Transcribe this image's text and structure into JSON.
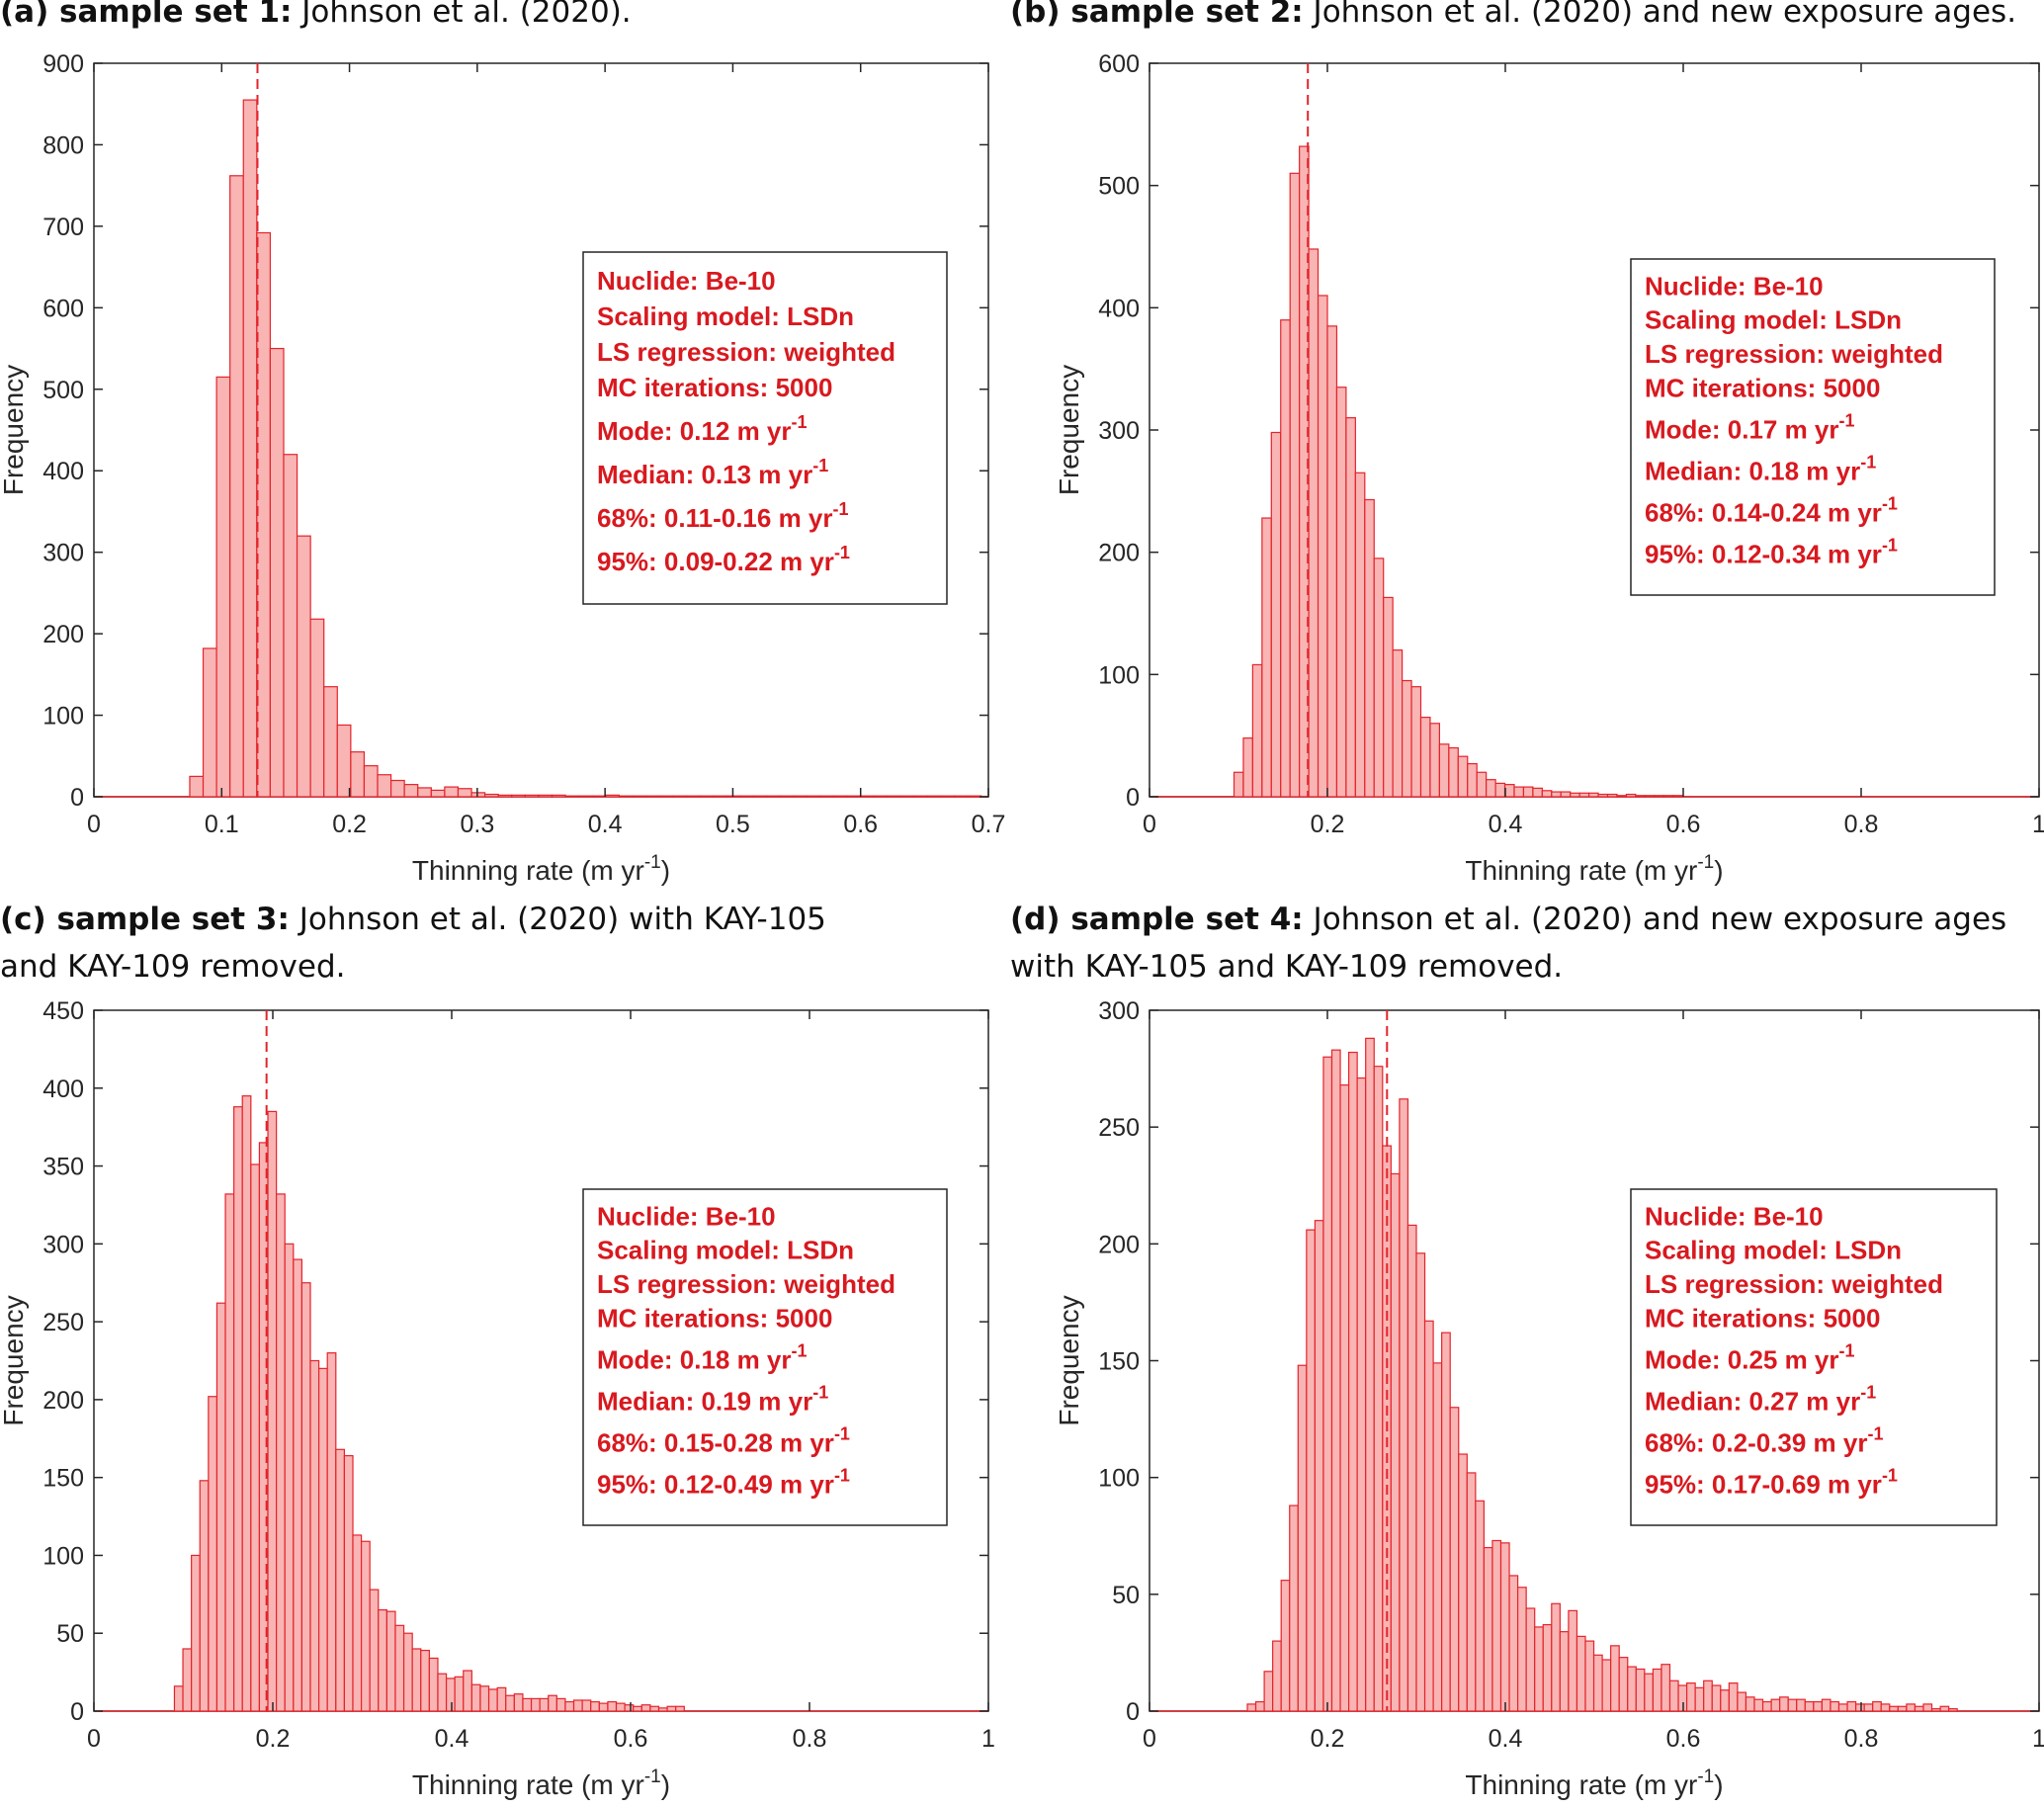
{
  "colors": {
    "bar_fill": "#f9b4b4",
    "bar_edge": "#e3242b",
    "legend_text": "#d8191f",
    "axis": "#262626"
  },
  "panels": [
    {
      "label": "(a) sample set 1:",
      "caption_line1": "Johnson et al. (2020).",
      "caption_line2": ""
    },
    {
      "label": "(b) sample set 2:",
      "caption_line1": "Johnson et al. (2020) and new exposure ages.",
      "caption_line2": ""
    },
    {
      "label": "(c) sample set 3:",
      "caption_line1": "Johnson et al. (2020) with KAY-105",
      "caption_line2": "and KAY-109 removed."
    },
    {
      "label": "(d) sample set 4:",
      "caption_line1": "Johnson et al. (2020) and new exposure ages",
      "caption_line2": "with KAY-105 and KAY-109 removed."
    }
  ],
  "chart_data": [
    {
      "type": "bar",
      "title": "",
      "xlabel": "Thinning rate (m yr",
      "xlabel_sup": "-1",
      "xlabel_end": ")",
      "ylabel": "Frequency",
      "xlim": [
        0,
        0.7
      ],
      "ylim": [
        0,
        900
      ],
      "xticks": [
        0,
        0.1,
        0.2,
        0.3,
        0.4,
        0.5,
        0.6,
        0.7
      ],
      "xtick_labels": [
        "0",
        "0.1",
        "0.2",
        "0.3",
        "0.4",
        "0.5",
        "0.6",
        "0.7"
      ],
      "yticks": [
        0,
        100,
        200,
        300,
        400,
        500,
        600,
        700,
        800,
        900
      ],
      "ytick_labels": [
        "0",
        "100",
        "200",
        "300",
        "400",
        "500",
        "600",
        "700",
        "800",
        "900"
      ],
      "bin_start": 0.075,
      "bin_width": 0.0105,
      "values": [
        25,
        182,
        515,
        762,
        855,
        692,
        550,
        420,
        320,
        218,
        135,
        88,
        55,
        38,
        27,
        20,
        15,
        11,
        8,
        12,
        10,
        5,
        3,
        2,
        2,
        2,
        2,
        2,
        1,
        1,
        1,
        2,
        1,
        1,
        1,
        1,
        1,
        1,
        1,
        1,
        1,
        1,
        1,
        1,
        1,
        1,
        1,
        1,
        1,
        1,
        1,
        1,
        1,
        1,
        1,
        1,
        1,
        1,
        1,
        1,
        1,
        1,
        1
      ],
      "reference_line": 0.128,
      "legend": [
        "Nuclide: Be-10",
        "Scaling model: LSDn",
        "LS regression: weighted",
        "MC iterations: 5000",
        "Mode: 0.12 m yr",
        "Median: 0.13 m yr",
        "68%: 0.11-0.16 m yr",
        "95%: 0.09-0.22 m yr"
      ],
      "legend_sup": [
        "",
        "",
        "",
        "",
        "-1",
        "-1",
        "-1",
        "-1"
      ],
      "legend_placement": "right-middle"
    },
    {
      "type": "bar",
      "title": "",
      "xlabel": "Thinning rate (m yr",
      "xlabel_sup": "-1",
      "xlabel_end": ")",
      "ylabel": "Frequency",
      "xlim": [
        0,
        1
      ],
      "ylim": [
        0,
        600
      ],
      "xticks": [
        0,
        0.2,
        0.4,
        0.6,
        0.8,
        1
      ],
      "xtick_labels": [
        "0",
        "0.2",
        "0.4",
        "0.6",
        "0.8",
        "1"
      ],
      "yticks": [
        0,
        100,
        200,
        300,
        400,
        500,
        600
      ],
      "ytick_labels": [
        "0",
        "100",
        "200",
        "300",
        "400",
        "500",
        "600"
      ],
      "bin_start": 0.095,
      "bin_width": 0.0105,
      "values": [
        20,
        48,
        108,
        228,
        298,
        390,
        510,
        532,
        448,
        410,
        385,
        335,
        310,
        265,
        243,
        195,
        163,
        120,
        95,
        90,
        65,
        60,
        43,
        40,
        33,
        27,
        20,
        14,
        11,
        10,
        8,
        8,
        7,
        5,
        4,
        4,
        3,
        3,
        3,
        2,
        2,
        1,
        2,
        1,
        1,
        1,
        1,
        1
      ],
      "reference_line": 0.178,
      "legend": [
        "Nuclide: Be-10",
        "Scaling model: LSDn",
        "LS regression: weighted",
        "MC iterations: 5000",
        "Mode: 0.17 m yr",
        "Median: 0.18 m yr",
        "68%: 0.14-0.24 m yr",
        "95%: 0.12-0.34 m yr"
      ],
      "legend_sup": [
        "",
        "",
        "",
        "",
        "-1",
        "-1",
        "-1",
        "-1"
      ],
      "legend_placement": "right-middle"
    },
    {
      "type": "bar",
      "title": "",
      "xlabel": "Thinning rate (m yr",
      "xlabel_sup": "-1",
      "xlabel_end": ")",
      "ylabel": "Frequency",
      "xlim": [
        0,
        1
      ],
      "ylim": [
        0,
        450
      ],
      "xticks": [
        0,
        0.2,
        0.4,
        0.6,
        0.8,
        1
      ],
      "xtick_labels": [
        "0",
        "0.2",
        "0.4",
        "0.6",
        "0.8",
        "1"
      ],
      "yticks": [
        0,
        50,
        100,
        150,
        200,
        250,
        300,
        350,
        400,
        450
      ],
      "ytick_labels": [
        "0",
        "50",
        "100",
        "150",
        "200",
        "250",
        "300",
        "350",
        "400",
        "450"
      ],
      "bin_start": 0.09,
      "bin_width": 0.0095,
      "values": [
        16,
        40,
        100,
        148,
        202,
        262,
        332,
        388,
        395,
        351,
        365,
        385,
        332,
        300,
        290,
        275,
        225,
        220,
        230,
        168,
        164,
        113,
        109,
        78,
        65,
        64,
        55,
        50,
        40,
        39,
        34,
        24,
        21,
        22,
        26,
        17,
        16,
        14,
        15,
        10,
        11,
        8,
        8,
        8,
        10,
        8,
        6,
        7,
        7,
        6,
        5,
        6,
        5,
        4,
        3,
        4,
        3,
        2,
        3,
        3
      ],
      "reference_line": 0.193,
      "legend": [
        "Nuclide: Be-10",
        "Scaling model: LSDn",
        "LS regression: weighted",
        "MC iterations: 5000",
        "Mode: 0.18 m yr",
        "Median: 0.19 m yr",
        "68%: 0.15-0.28 m yr",
        "95%: 0.12-0.49 m yr"
      ],
      "legend_sup": [
        "",
        "",
        "",
        "",
        "-1",
        "-1",
        "-1",
        "-1"
      ],
      "legend_placement": "right-middle"
    },
    {
      "type": "bar",
      "title": "",
      "xlabel": "Thinning rate (m yr",
      "xlabel_sup": "-1",
      "xlabel_end": ")",
      "ylabel": "Frequency",
      "xlim": [
        0,
        1
      ],
      "ylim": [
        0,
        300
      ],
      "xticks": [
        0,
        0.2,
        0.4,
        0.6,
        0.8,
        1
      ],
      "xtick_labels": [
        "0",
        "0.2",
        "0.4",
        "0.6",
        "0.8",
        "1"
      ],
      "yticks": [
        0,
        50,
        100,
        150,
        200,
        250,
        300
      ],
      "ytick_labels": [
        "0",
        "50",
        "100",
        "150",
        "200",
        "250",
        "300"
      ],
      "bin_start": 0.11,
      "bin_width": 0.0095,
      "values": [
        3,
        4,
        17,
        30,
        56,
        88,
        148,
        206,
        210,
        280,
        283,
        268,
        282,
        271,
        288,
        276,
        242,
        230,
        262,
        208,
        196,
        167,
        149,
        162,
        130,
        110,
        102,
        90,
        70,
        73,
        72,
        58,
        53,
        44,
        36,
        37,
        46,
        34,
        43,
        32,
        30,
        24,
        22,
        28,
        23,
        19,
        18,
        16,
        18,
        20,
        13,
        11,
        12,
        10,
        13,
        11,
        9,
        12,
        8,
        6,
        5,
        4,
        5,
        6,
        5,
        5,
        4,
        4,
        5,
        4,
        3,
        4,
        3,
        3,
        4,
        3,
        2,
        2,
        3,
        2,
        3,
        1,
        2,
        1
      ],
      "reference_line": 0.267,
      "legend": [
        "Nuclide: Be-10",
        "Scaling model: LSDn",
        "LS regression: weighted",
        "MC iterations: 5000",
        "Mode: 0.25 m yr",
        "Median: 0.27 m yr",
        "68%: 0.2-0.39 m yr",
        "95%: 0.17-0.69 m yr"
      ],
      "legend_sup": [
        "",
        "",
        "",
        "",
        "-1",
        "-1",
        "-1",
        "-1"
      ],
      "legend_placement": "right-middle"
    }
  ]
}
